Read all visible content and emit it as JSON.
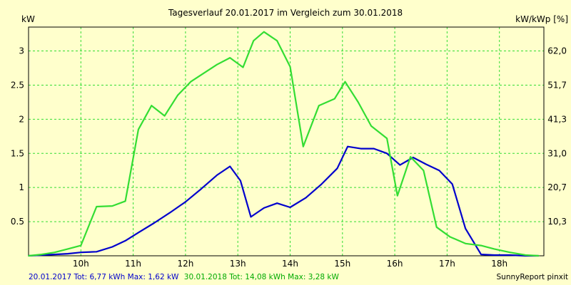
{
  "chart_data": {
    "type": "line",
    "title": "Tagesverlauf 20.01.2017 im Vergleich zum 30.01.2018",
    "ylabel_left": "kW",
    "ylabel_right": "kW/kWp [%]",
    "x_unit": "hour",
    "xlim": [
      9.0,
      18.85
    ],
    "ylim": [
      0,
      3.35
    ],
    "x_ticks": [
      {
        "value": 10,
        "label": "10h"
      },
      {
        "value": 11,
        "label": "11h"
      },
      {
        "value": 12,
        "label": "12h"
      },
      {
        "value": 13,
        "label": "13h"
      },
      {
        "value": 14,
        "label": "14h"
      },
      {
        "value": 15,
        "label": "15h"
      },
      {
        "value": 16,
        "label": "16h"
      },
      {
        "value": 17,
        "label": "17h"
      },
      {
        "value": 18,
        "label": "18h"
      }
    ],
    "y_ticks_left": [
      {
        "value": 0.5,
        "label": "0.5"
      },
      {
        "value": 1,
        "label": "1"
      },
      {
        "value": 1.5,
        "label": "1.5"
      },
      {
        "value": 2,
        "label": "2"
      },
      {
        "value": 2.5,
        "label": "2.5"
      },
      {
        "value": 3,
        "label": "3"
      }
    ],
    "y_ticks_right": [
      {
        "value": 0.5,
        "label": "10,3"
      },
      {
        "value": 1,
        "label": "20,7"
      },
      {
        "value": 1.5,
        "label": "31,0"
      },
      {
        "value": 2,
        "label": "41,3"
      },
      {
        "value": 2.5,
        "label": "51,7"
      },
      {
        "value": 3,
        "label": "62,0"
      }
    ],
    "grid": true,
    "series": [
      {
        "name": "20.01.2017",
        "color": "#0000cc",
        "x": [
          9.0,
          9.25,
          9.5,
          9.75,
          10.0,
          10.3,
          10.6,
          10.85,
          11.1,
          11.4,
          11.7,
          12.0,
          12.3,
          12.6,
          12.85,
          13.05,
          13.25,
          13.5,
          13.75,
          14.0,
          14.3,
          14.6,
          14.9,
          15.1,
          15.35,
          15.6,
          15.85,
          16.1,
          16.35,
          16.6,
          16.85,
          17.1,
          17.35,
          17.65,
          17.9,
          18.2,
          18.5,
          18.75
        ],
        "values": [
          0.0,
          0.01,
          0.02,
          0.03,
          0.05,
          0.06,
          0.13,
          0.22,
          0.34,
          0.48,
          0.63,
          0.79,
          0.98,
          1.18,
          1.31,
          1.1,
          0.57,
          0.7,
          0.77,
          0.71,
          0.85,
          1.05,
          1.28,
          1.6,
          1.57,
          1.57,
          1.5,
          1.33,
          1.44,
          1.34,
          1.25,
          1.05,
          0.4,
          0.02,
          0.01,
          0.01,
          0.0,
          0.0
        ]
      },
      {
        "name": "30.01.2018",
        "color": "#33dd33",
        "x": [
          9.0,
          9.25,
          9.5,
          9.75,
          10.0,
          10.3,
          10.6,
          10.85,
          11.1,
          11.35,
          11.6,
          11.85,
          12.1,
          12.3,
          12.6,
          12.85,
          13.1,
          13.3,
          13.5,
          13.75,
          14.0,
          14.25,
          14.55,
          14.85,
          15.05,
          15.3,
          15.55,
          15.85,
          16.05,
          16.3,
          16.55,
          16.8,
          17.05,
          17.35,
          17.65,
          17.9,
          18.2,
          18.5,
          18.75
        ],
        "values": [
          0.0,
          0.02,
          0.05,
          0.1,
          0.15,
          0.72,
          0.73,
          0.8,
          1.85,
          2.2,
          2.05,
          2.35,
          2.55,
          2.65,
          2.8,
          2.9,
          2.76,
          3.15,
          3.28,
          3.15,
          2.77,
          1.6,
          2.2,
          2.3,
          2.55,
          2.25,
          1.9,
          1.72,
          0.88,
          1.45,
          1.25,
          0.42,
          0.28,
          0.18,
          0.15,
          0.1,
          0.05,
          0.01,
          0.0
        ]
      }
    ],
    "legend": {
      "placement": "bottom-left",
      "entries": [
        {
          "text": "20.01.2017 Tot: 6,77 kWh Max: 1,62 kW",
          "color": "#0000cc"
        },
        {
          "text": "30.01.2018 Tot: 14,08 kWh Max: 3,28 kW",
          "color": "#00aa00"
        }
      ]
    },
    "credit": "SunnyReport pinxit",
    "colors": {
      "background": "#ffffcc",
      "grid": "#33dd33",
      "axes": "#000000"
    }
  }
}
